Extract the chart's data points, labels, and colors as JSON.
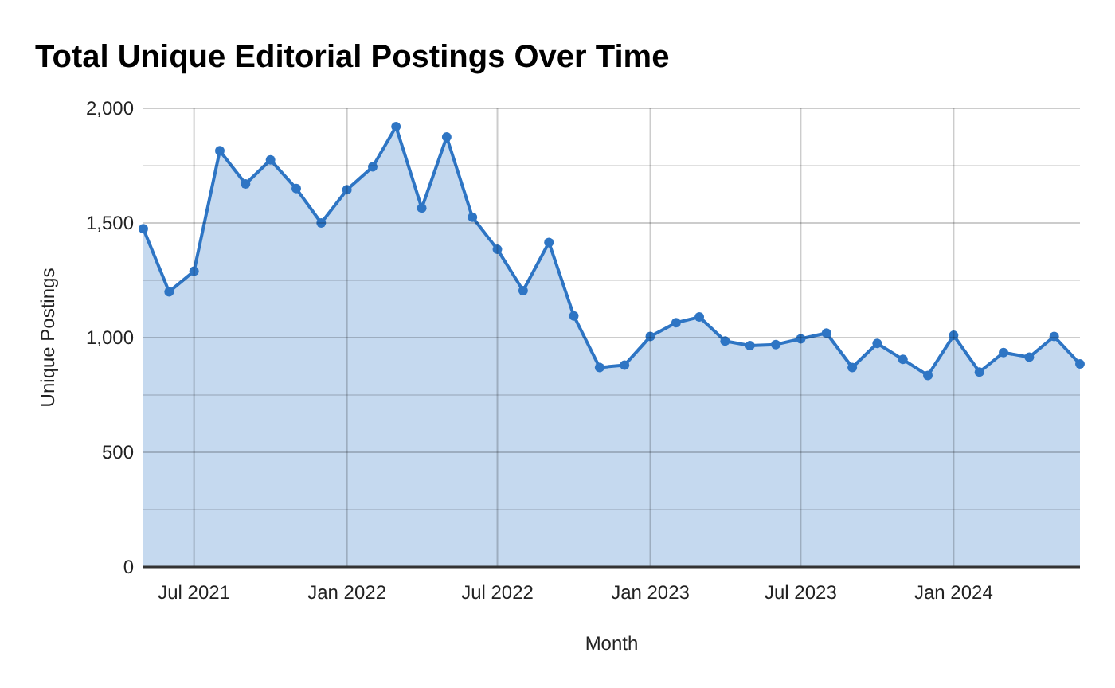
{
  "chart_data": {
    "type": "area",
    "title": "Total Unique Editorial Postings Over Time",
    "xlabel": "Month",
    "ylabel": "Unique Postings",
    "x": [
      "2021-05",
      "2021-06",
      "2021-07",
      "2021-08",
      "2021-09",
      "2021-10",
      "2021-11",
      "2021-12",
      "2022-01",
      "2022-02",
      "2022-03",
      "2022-04",
      "2022-05",
      "2022-06",
      "2022-07",
      "2022-08",
      "2022-09",
      "2022-10",
      "2022-11",
      "2022-12",
      "2023-01",
      "2023-02",
      "2023-03",
      "2023-04",
      "2023-05",
      "2023-06",
      "2023-07",
      "2023-08",
      "2023-09",
      "2023-10",
      "2023-11",
      "2023-12",
      "2024-01",
      "2024-02",
      "2024-03",
      "2024-04",
      "2024-05",
      "2024-06"
    ],
    "series": [
      {
        "color": "#2e75c4",
        "values": [
          1475,
          1200,
          1290,
          1815,
          1670,
          1775,
          1650,
          1500,
          1645,
          1745,
          1920,
          1565,
          1875,
          1525,
          1385,
          1205,
          1415,
          1095,
          870,
          880,
          1005,
          1065,
          1090,
          985,
          965,
          970,
          995,
          1020,
          870,
          975,
          905,
          835,
          1010,
          850,
          935,
          915,
          1005,
          885
        ]
      }
    ],
    "xlim": [
      "2021-05",
      "2024-06"
    ],
    "xticks": [
      {
        "value": "2021-07",
        "label": "Jul 2021"
      },
      {
        "value": "2022-01",
        "label": "Jan 2022"
      },
      {
        "value": "2022-07",
        "label": "Jul 2022"
      },
      {
        "value": "2023-01",
        "label": "Jan 2023"
      },
      {
        "value": "2023-07",
        "label": "Jul 2023"
      },
      {
        "value": "2024-01",
        "label": "Jan 2024"
      }
    ],
    "ylim": [
      0,
      2000
    ],
    "yticks": [
      0,
      {
        "value": 250,
        "label": null
      },
      500,
      {
        "value": 750,
        "label": null
      },
      {
        "value": 1000,
        "label": "1,000"
      },
      {
        "value": 1250,
        "label": null
      },
      {
        "value": 1500,
        "label": "1,500"
      },
      {
        "value": 1750,
        "label": null
      },
      {
        "value": 2000,
        "label": "2,000"
      }
    ],
    "grid": true,
    "marker": "circle",
    "line_style": "solid"
  }
}
